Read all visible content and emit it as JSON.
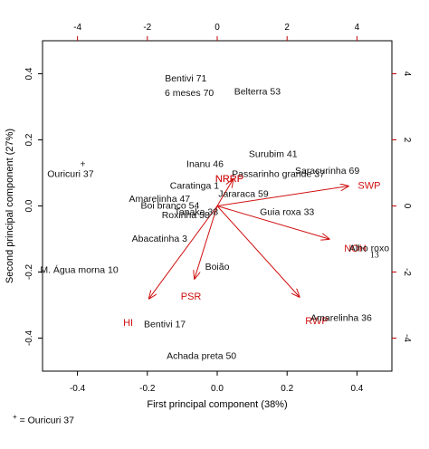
{
  "chart_data": {
    "type": "scatter",
    "subtype": "pca-biplot",
    "xlabel": "First principal component (38%)",
    "ylabel": "Second principal component (27%)",
    "xlim": [
      -0.5,
      0.5
    ],
    "ylim": [
      -0.5,
      0.5
    ],
    "x_ticks": [
      -0.4,
      -0.2,
      0.0,
      0.2,
      0.4
    ],
    "x_tick_labels": [
      "-0.4",
      "-0.2",
      "0.0",
      "0.2",
      "0.4"
    ],
    "y_ticks": [
      -0.4,
      -0.2,
      0.0,
      0.2,
      0.4
    ],
    "y_tick_labels": [
      "-0.4",
      "-0.2",
      "0.0",
      "0.2",
      "0.4"
    ],
    "top_ticks": [
      -4,
      -2,
      0,
      2,
      4
    ],
    "top_tick_labels": [
      "-4",
      "-2",
      "0",
      "2",
      "4"
    ],
    "right_ticks": [
      -4,
      -2,
      0,
      2,
      4
    ],
    "right_tick_labels": [
      "-4",
      "-2",
      "0",
      "2",
      "4"
    ],
    "observations": [
      {
        "label": "Bentivi 71",
        "x": -0.09,
        "y": 0.385
      },
      {
        "label": "6 meses 70",
        "x": -0.08,
        "y": 0.34
      },
      {
        "label": "Belterra 53",
        "x": 0.115,
        "y": 0.345
      },
      {
        "label": "Surubim 41",
        "x": 0.16,
        "y": 0.155
      },
      {
        "label": "Inanu 46",
        "x": -0.035,
        "y": 0.125
      },
      {
        "label": "Ouricuri 37",
        "x": -0.42,
        "y": 0.095
      },
      {
        "label": "Saracurinha 69",
        "x": 0.315,
        "y": 0.105
      },
      {
        "label": "Passarinho grande 37",
        "x": 0.175,
        "y": 0.095
      },
      {
        "label": "NRRP",
        "x": 0.035,
        "y": 0.08,
        "red": true
      },
      {
        "label": "Caratinga 1",
        "x": -0.065,
        "y": 0.06
      },
      {
        "label": "Jararaca 59",
        "x": 0.075,
        "y": 0.035
      },
      {
        "label": "Amarelinha 47",
        "x": -0.165,
        "y": 0.02
      },
      {
        "label": "Boi branco 54",
        "x": -0.135,
        "y": 0.0
      },
      {
        "label": "Guia roxa 33",
        "x": 0.2,
        "y": -0.02
      },
      {
        "label": "Tanaka 38",
        "x": -0.06,
        "y": -0.02
      },
      {
        "label": "Roxinha 58",
        "x": -0.09,
        "y": -0.03
      },
      {
        "label": "Abacatinha 3",
        "x": -0.165,
        "y": -0.1
      },
      {
        "label": "M. Água morna 10",
        "x": -0.395,
        "y": -0.195
      },
      {
        "label": "Boião",
        "x": 0.0,
        "y": -0.185
      },
      {
        "label": "Alho roxo",
        "x": 0.435,
        "y": -0.13
      },
      {
        "label": "13",
        "x": 0.45,
        "y": -0.15
      },
      {
        "label": "Amarelinha 36",
        "x": 0.355,
        "y": -0.34
      },
      {
        "label": "Bentivi 17",
        "x": -0.15,
        "y": -0.36
      },
      {
        "label": "Achada preta 50",
        "x": -0.045,
        "y": -0.455
      }
    ],
    "extra_marks": [
      {
        "label": "+",
        "x": -0.385,
        "y": 0.125
      }
    ],
    "variables": [
      {
        "name": "NRRP",
        "x": 0.045,
        "y": 0.08
      },
      {
        "name": "SWP",
        "x": 0.375,
        "y": 0.06
      },
      {
        "name": "NOH",
        "x": 0.32,
        "y": -0.1
      },
      {
        "name": "RWP",
        "x": 0.235,
        "y": -0.275
      },
      {
        "name": "HI",
        "x": -0.195,
        "y": -0.28
      },
      {
        "name": "PSR",
        "x": -0.065,
        "y": -0.22
      }
    ],
    "variable_labels": [
      {
        "name": "NRRP",
        "x": 0.035,
        "y": 0.08
      },
      {
        "name": "SWP",
        "x": 0.435,
        "y": 0.06
      },
      {
        "name": "NOH",
        "x": 0.395,
        "y": -0.13
      },
      {
        "name": "RWP",
        "x": 0.285,
        "y": -0.35
      },
      {
        "name": "HI",
        "x": -0.255,
        "y": -0.355
      },
      {
        "name": "PSR",
        "x": -0.075,
        "y": -0.275
      }
    ],
    "grid": false
  },
  "footnote": {
    "mark": "+",
    "text": " = Ouricuri 37"
  }
}
